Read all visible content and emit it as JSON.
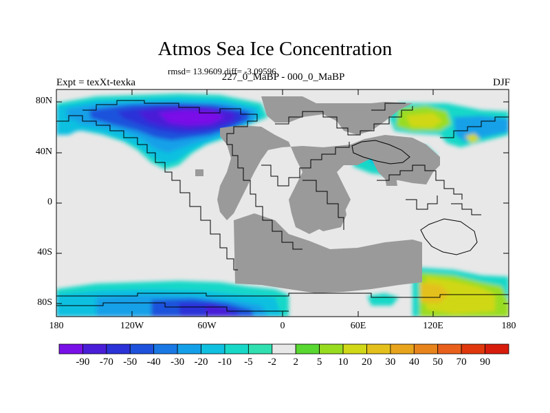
{
  "header": {
    "title": "Atmos Sea Ice Concentration",
    "stats": "rmsd= 13.9609 diff= -3.09596",
    "left_label": "Expt = texXt-texka",
    "center_label": "227_0_MaBP - 000_0_MaBP",
    "right_label": "DJF"
  },
  "axes": {
    "lat_labels": [
      "80N",
      "40N",
      "0",
      "40S",
      "80S"
    ],
    "lon_labels": [
      "180",
      "120W",
      "60W",
      "0",
      "60E",
      "120E",
      "180"
    ]
  },
  "colorbar": {
    "labels": [
      "-90",
      "-70",
      "-50",
      "-40",
      "-30",
      "-20",
      "-10",
      "-5",
      "-2",
      "2",
      "5",
      "10",
      "20",
      "30",
      "40",
      "50",
      "70",
      "90"
    ],
    "colors": [
      "#7a10e8",
      "#4a1ed8",
      "#2a32d8",
      "#1e52dc",
      "#1a78e4",
      "#14a0e8",
      "#10c0e0",
      "#18d8c8",
      "#30e0b0",
      "#e8e8e8",
      "#58d830",
      "#98dc20",
      "#d0d818",
      "#e4c01c",
      "#e8a41c",
      "#e8841c",
      "#e8601c",
      "#e0380c",
      "#d81c0c"
    ]
  },
  "colors": {
    "land": "#9a9a9a",
    "background_field": "#e8e8e8",
    "coastline": "#000000"
  }
}
